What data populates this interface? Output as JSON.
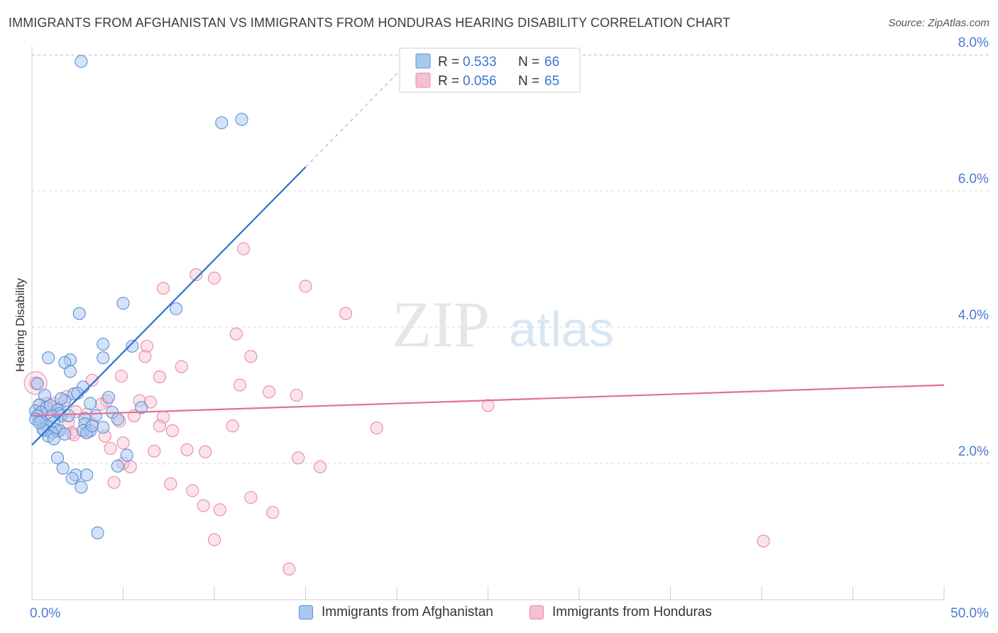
{
  "title": "IMMIGRANTS FROM AFGHANISTAN VS IMMIGRANTS FROM HONDURAS HEARING DISABILITY CORRELATION CHART",
  "source": "Source: ZipAtlas.com",
  "watermark": {
    "zip": "ZIP",
    "atlas": "atlas"
  },
  "colors": {
    "afghanistan_fill": "#a8c8f0",
    "afghanistan_stroke": "#5b8fd6",
    "afghanistan_line": "#2f6fd1",
    "honduras_fill": "#f7c0d0",
    "honduras_stroke": "#e88aa8",
    "honduras_line": "#e0709a",
    "tick_label": "#4a7bd0",
    "grid": "#d9d9d9"
  },
  "legend_top": [
    {
      "r_label": "R =",
      "r_value": "0.533",
      "n_label": "N =",
      "n_value": "66"
    },
    {
      "r_label": "R =",
      "r_value": "0.056",
      "n_label": "N =",
      "n_value": "65"
    }
  ],
  "legend_bottom": [
    "Immigrants from Afghanistan",
    "Immigrants from Honduras"
  ],
  "chart_data": {
    "type": "scatter",
    "title": "IMMIGRANTS FROM AFGHANISTAN VS IMMIGRANTS FROM HONDURAS HEARING DISABILITY CORRELATION CHART",
    "xlabel": "",
    "ylabel": "Hearing Disability",
    "xlim": [
      0,
      50
    ],
    "ylim": [
      0,
      8.4
    ],
    "x_tick_labels": [
      "0.0%",
      "50.0%"
    ],
    "y_tick_labels": [
      "2.0%",
      "4.0%",
      "6.0%",
      "8.0%"
    ],
    "y_ticks": [
      2,
      4,
      6,
      8
    ],
    "grid": true,
    "legend_placement": "top-center",
    "series": [
      {
        "name": "Immigrants from Afghanistan",
        "r": 0.533,
        "n": 66,
        "trend": {
          "x0": 0,
          "y0": 2.27,
          "x1": 15,
          "y1": 6.35,
          "dashed_to_x": 21,
          "dashed_to_y": 7.99
        },
        "points": [
          [
            2.7,
            7.9
          ],
          [
            10.4,
            7.0
          ],
          [
            11.5,
            7.05
          ],
          [
            5.0,
            4.35
          ],
          [
            7.9,
            4.27
          ],
          [
            2.6,
            4.2
          ],
          [
            3.9,
            3.75
          ],
          [
            5.5,
            3.72
          ],
          [
            0.9,
            3.55
          ],
          [
            2.1,
            3.52
          ],
          [
            3.9,
            3.55
          ],
          [
            1.8,
            3.48
          ],
          [
            2.1,
            3.35
          ],
          [
            0.3,
            3.17
          ],
          [
            2.8,
            3.12
          ],
          [
            0.7,
            3.0
          ],
          [
            2.3,
            3.02
          ],
          [
            2.5,
            3.03
          ],
          [
            4.2,
            2.97
          ],
          [
            1.8,
            2.92
          ],
          [
            3.2,
            2.88
          ],
          [
            0.4,
            2.86
          ],
          [
            0.8,
            2.82
          ],
          [
            1.0,
            2.85
          ],
          [
            6.0,
            2.82
          ],
          [
            0.2,
            2.77
          ],
          [
            0.5,
            2.75
          ],
          [
            1.4,
            2.78
          ],
          [
            1.5,
            2.73
          ],
          [
            4.4,
            2.75
          ],
          [
            0.3,
            2.7
          ],
          [
            1.1,
            2.7
          ],
          [
            1.6,
            2.7
          ],
          [
            3.5,
            2.7
          ],
          [
            2.9,
            2.66
          ],
          [
            0.2,
            2.65
          ],
          [
            4.7,
            2.65
          ],
          [
            0.5,
            2.62
          ],
          [
            1.2,
            2.6
          ],
          [
            2.9,
            2.58
          ],
          [
            0.8,
            2.55
          ],
          [
            3.9,
            2.53
          ],
          [
            1.3,
            2.5
          ],
          [
            0.7,
            2.48
          ],
          [
            1.5,
            2.48
          ],
          [
            2.8,
            2.48
          ],
          [
            3.2,
            2.48
          ],
          [
            1.1,
            2.45
          ],
          [
            3.0,
            2.45
          ],
          [
            1.8,
            2.43
          ],
          [
            0.9,
            2.4
          ],
          [
            1.2,
            2.36
          ],
          [
            5.2,
            2.12
          ],
          [
            1.4,
            2.08
          ],
          [
            4.7,
            1.96
          ],
          [
            1.7,
            1.93
          ],
          [
            2.4,
            1.83
          ],
          [
            3.0,
            1.83
          ],
          [
            2.2,
            1.78
          ],
          [
            2.7,
            1.65
          ],
          [
            3.6,
            0.98
          ],
          [
            0.6,
            2.5
          ],
          [
            2.0,
            2.7
          ],
          [
            1.6,
            2.95
          ],
          [
            0.4,
            2.6
          ],
          [
            3.3,
            2.55
          ]
        ]
      },
      {
        "name": "Immigrants from Honduras",
        "r": 0.056,
        "n": 65,
        "trend": {
          "x0": 0,
          "y0": 2.7,
          "x1": 50,
          "y1": 3.15
        },
        "points": [
          [
            11.6,
            5.15
          ],
          [
            9.0,
            4.77
          ],
          [
            10.0,
            4.72
          ],
          [
            15.0,
            4.6
          ],
          [
            7.2,
            4.57
          ],
          [
            17.2,
            4.2
          ],
          [
            11.2,
            3.9
          ],
          [
            6.3,
            3.72
          ],
          [
            6.2,
            3.57
          ],
          [
            12.0,
            3.57
          ],
          [
            8.2,
            3.42
          ],
          [
            4.9,
            3.28
          ],
          [
            7.0,
            3.27
          ],
          [
            3.3,
            3.22
          ],
          [
            0.2,
            3.18
          ],
          [
            11.4,
            3.15
          ],
          [
            13.0,
            3.05
          ],
          [
            14.5,
            3.0
          ],
          [
            4.1,
            2.92
          ],
          [
            5.9,
            2.92
          ],
          [
            6.5,
            2.9
          ],
          [
            0.8,
            2.88
          ],
          [
            1.2,
            2.88
          ],
          [
            3.8,
            2.87
          ],
          [
            0.4,
            2.85
          ],
          [
            25.0,
            2.85
          ],
          [
            1.5,
            2.8
          ],
          [
            2.4,
            2.76
          ],
          [
            3.0,
            2.72
          ],
          [
            7.2,
            2.68
          ],
          [
            4.8,
            2.62
          ],
          [
            0.6,
            2.6
          ],
          [
            2.0,
            2.6
          ],
          [
            3.3,
            2.58
          ],
          [
            7.0,
            2.55
          ],
          [
            11.0,
            2.55
          ],
          [
            18.9,
            2.52
          ],
          [
            1.4,
            2.47
          ],
          [
            2.2,
            2.45
          ],
          [
            3.0,
            2.45
          ],
          [
            2.3,
            2.42
          ],
          [
            7.7,
            2.48
          ],
          [
            4.0,
            2.4
          ],
          [
            5.0,
            2.3
          ],
          [
            4.3,
            2.22
          ],
          [
            8.5,
            2.2
          ],
          [
            6.7,
            2.18
          ],
          [
            9.5,
            2.17
          ],
          [
            14.6,
            2.08
          ],
          [
            5.0,
            2.0
          ],
          [
            5.4,
            1.95
          ],
          [
            15.8,
            1.95
          ],
          [
            4.5,
            1.72
          ],
          [
            7.6,
            1.7
          ],
          [
            8.8,
            1.6
          ],
          [
            12.0,
            1.5
          ],
          [
            9.4,
            1.38
          ],
          [
            10.3,
            1.32
          ],
          [
            13.2,
            1.28
          ],
          [
            10.0,
            0.88
          ],
          [
            14.1,
            0.45
          ],
          [
            40.1,
            0.86
          ],
          [
            1.9,
            2.98
          ],
          [
            5.6,
            2.7
          ],
          [
            0.9,
            2.75
          ]
        ]
      }
    ]
  }
}
